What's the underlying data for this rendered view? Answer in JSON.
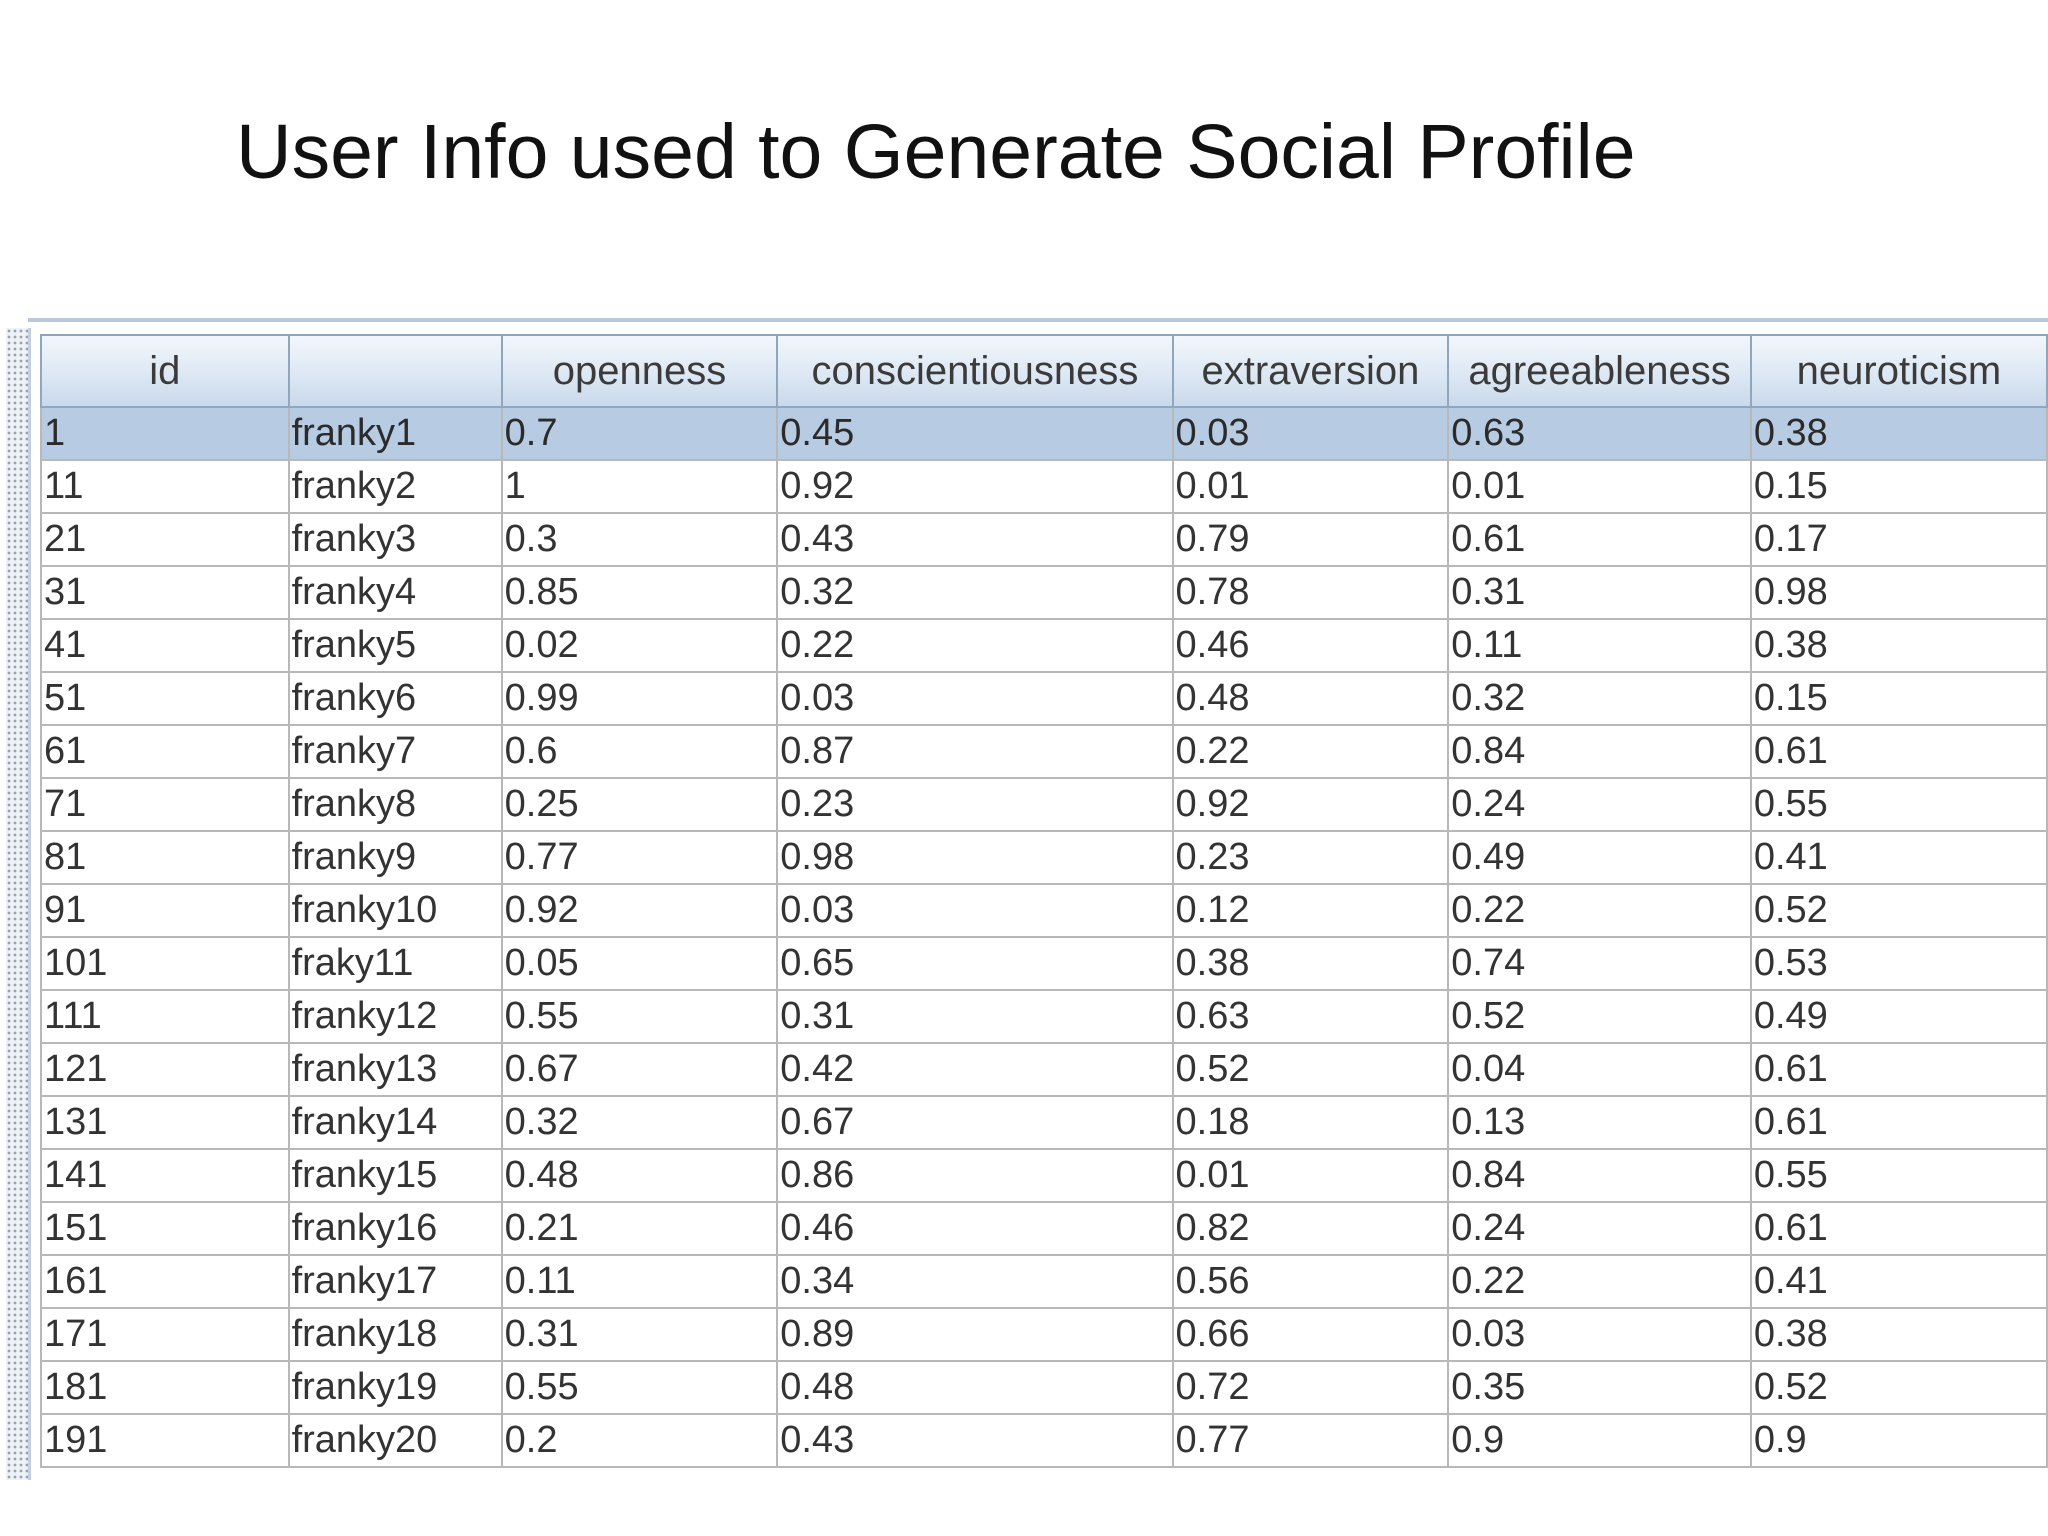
{
  "title": "User Info used to Generate Social Profile",
  "table": {
    "columns": [
      "id",
      "",
      "openness",
      "conscientiousness",
      "extraversion",
      "agreeableness",
      "neuroticism"
    ],
    "selected_row_index": 0,
    "rows": [
      [
        "1",
        "franky1",
        "0.7",
        "0.45",
        "0.03",
        "0.63",
        "0.38"
      ],
      [
        "11",
        "franky2",
        "1",
        "0.92",
        "0.01",
        "0.01",
        "0.15"
      ],
      [
        "21",
        "franky3",
        "0.3",
        "0.43",
        "0.79",
        "0.61",
        "0.17"
      ],
      [
        "31",
        "franky4",
        "0.85",
        "0.32",
        "0.78",
        "0.31",
        "0.98"
      ],
      [
        "41",
        "franky5",
        "0.02",
        "0.22",
        "0.46",
        "0.11",
        "0.38"
      ],
      [
        "51",
        "franky6",
        "0.99",
        "0.03",
        "0.48",
        "0.32",
        "0.15"
      ],
      [
        "61",
        "franky7",
        "0.6",
        "0.87",
        "0.22",
        "0.84",
        "0.61"
      ],
      [
        "71",
        "franky8",
        "0.25",
        "0.23",
        "0.92",
        "0.24",
        "0.55"
      ],
      [
        "81",
        "franky9",
        "0.77",
        "0.98",
        "0.23",
        "0.49",
        "0.41"
      ],
      [
        "91",
        "franky10",
        "0.92",
        "0.03",
        "0.12",
        "0.22",
        "0.52"
      ],
      [
        "101",
        "fraky11",
        "0.05",
        "0.65",
        "0.38",
        "0.74",
        "0.53"
      ],
      [
        "111",
        "franky12",
        "0.55",
        "0.31",
        "0.63",
        "0.52",
        "0.49"
      ],
      [
        "121",
        "franky13",
        "0.67",
        "0.42",
        "0.52",
        "0.04",
        "0.61"
      ],
      [
        "131",
        "franky14",
        "0.32",
        "0.67",
        "0.18",
        "0.13",
        "0.61"
      ],
      [
        "141",
        "franky15",
        "0.48",
        "0.86",
        "0.01",
        "0.84",
        "0.55"
      ],
      [
        "151",
        "franky16",
        "0.21",
        "0.46",
        "0.82",
        "0.24",
        "0.61"
      ],
      [
        "161",
        "franky17",
        "0.11",
        "0.34",
        "0.56",
        "0.22",
        "0.41"
      ],
      [
        "171",
        "franky18",
        "0.31",
        "0.89",
        "0.66",
        "0.03",
        "0.38"
      ],
      [
        "181",
        "franky19",
        "0.55",
        "0.48",
        "0.72",
        "0.35",
        "0.52"
      ],
      [
        "191",
        "franky20",
        "0.2",
        "0.43",
        "0.77",
        "0.9",
        "0.9"
      ]
    ]
  }
}
